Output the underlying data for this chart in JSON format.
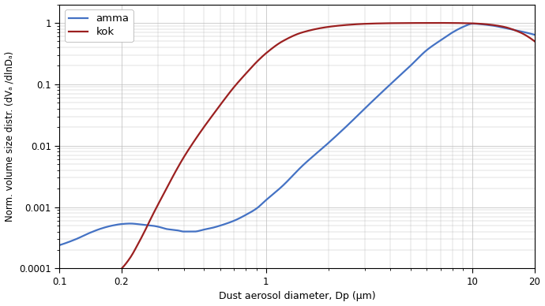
{
  "xlabel": "Dust aerosol diameter, Dp (μm)",
  "ylabel": "Norm. volume size distr. (dVₐ /dlnDₐ)",
  "xlim": [
    0.1,
    20
  ],
  "ylim": [
    0.0001,
    2.0
  ],
  "amma_color": "#4472C4",
  "kok_color": "#9B2020",
  "line_width": 1.6,
  "legend_labels": [
    "amma",
    "kok"
  ],
  "background_color": "#ffffff",
  "grid_color": "#bbbbbb",
  "amma_x": [
    0.1,
    0.12,
    0.14,
    0.16,
    0.18,
    0.2,
    0.22,
    0.25,
    0.28,
    0.3,
    0.33,
    0.37,
    0.4,
    0.45,
    0.5,
    0.55,
    0.6,
    0.7,
    0.8,
    0.9,
    1.0,
    1.2,
    1.5,
    2.0,
    2.5,
    3.0,
    4.0,
    5.0,
    6.0,
    7.0,
    8.0,
    9.0,
    10.0,
    12.0,
    15.0,
    18.0,
    20.0
  ],
  "amma_y": [
    0.00024,
    0.0003,
    0.00038,
    0.00045,
    0.0005,
    0.00053,
    0.00054,
    0.00052,
    0.0005,
    0.00048,
    0.00044,
    0.00042,
    0.0004,
    0.0004,
    0.00043,
    0.00046,
    0.0005,
    0.0006,
    0.00075,
    0.00095,
    0.0013,
    0.0022,
    0.0047,
    0.011,
    0.022,
    0.04,
    0.1,
    0.2,
    0.36,
    0.52,
    0.7,
    0.86,
    0.97,
    0.92,
    0.8,
    0.7,
    0.64
  ],
  "kok_x": [
    0.2,
    0.22,
    0.24,
    0.26,
    0.28,
    0.3,
    0.33,
    0.36,
    0.4,
    0.45,
    0.5,
    0.55,
    0.6,
    0.7,
    0.8,
    0.9,
    1.0,
    1.2,
    1.5,
    2.0,
    2.5,
    3.0,
    3.5,
    4.0,
    5.0,
    6.0,
    7.0,
    8.0,
    9.0,
    9.5,
    10.0,
    11.0,
    12.0,
    14.0,
    17.0,
    20.0
  ],
  "kok_y": [
    0.0001,
    0.00015,
    0.00025,
    0.00042,
    0.0007,
    0.0011,
    0.002,
    0.0035,
    0.0065,
    0.012,
    0.02,
    0.031,
    0.046,
    0.09,
    0.15,
    0.23,
    0.32,
    0.5,
    0.7,
    0.86,
    0.93,
    0.965,
    0.98,
    0.988,
    0.994,
    0.997,
    0.998,
    0.996,
    0.99,
    0.987,
    0.982,
    0.965,
    0.94,
    0.87,
    0.7,
    0.5
  ]
}
